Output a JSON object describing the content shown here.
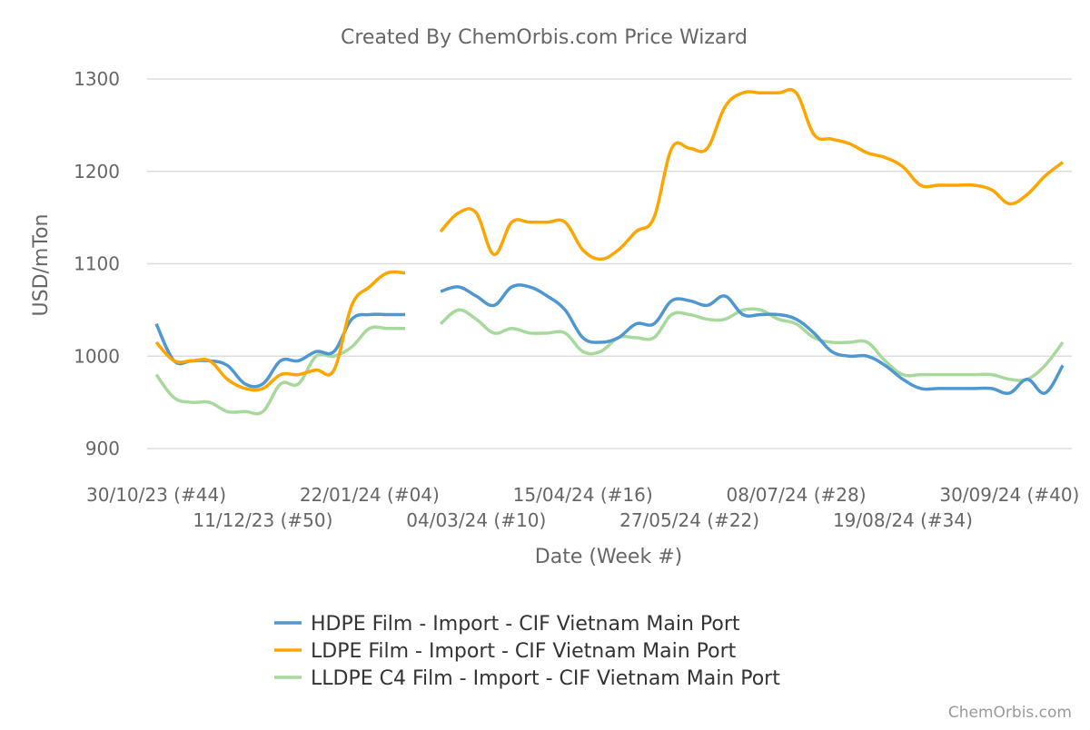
{
  "chart_data": {
    "type": "line",
    "title": "Created By ChemOrbis.com Price Wizard",
    "xlabel": "Date (Week #)",
    "ylabel": "USD/mTon",
    "ylim": [
      900,
      1300
    ],
    "yticks": [
      900,
      1000,
      1100,
      1200,
      1300
    ],
    "grid": true,
    "legend_position": "bottom",
    "watermark": "ChemOrbis.com",
    "x_tick_labels": [
      {
        "index": 0,
        "label": "30/10/23 (#44)"
      },
      {
        "index": 6,
        "label": "11/12/23 (#50)"
      },
      {
        "index": 12,
        "label": "22/01/24 (#04)"
      },
      {
        "index": 18,
        "label": "04/03/24 (#10)"
      },
      {
        "index": 24,
        "label": "15/04/24 (#16)"
      },
      {
        "index": 30,
        "label": "27/05/24 (#22)"
      },
      {
        "index": 36,
        "label": "08/07/24 (#28)"
      },
      {
        "index": 42,
        "label": "19/08/24 (#34)"
      },
      {
        "index": 48,
        "label": "30/09/24 (#40)"
      }
    ],
    "series": [
      {
        "name": "HDPE Film - Import - CIF Vietnam Main Port",
        "color": "#4e97d1",
        "values": [
          1035,
          995,
          995,
          995,
          990,
          970,
          970,
          995,
          995,
          1005,
          1005,
          1040,
          1045,
          1045,
          1045,
          null,
          1070,
          1075,
          1065,
          1055,
          1075,
          1075,
          1065,
          1050,
          1020,
          1015,
          1020,
          1035,
          1035,
          1060,
          1060,
          1055,
          1065,
          1045,
          1045,
          1045,
          1040,
          1025,
          1005,
          1000,
          1000,
          990,
          975,
          965,
          965,
          965,
          965,
          965,
          960,
          975,
          960,
          990
        ]
      },
      {
        "name": "LDPE Film - Import - CIF Vietnam Main Port",
        "color": "#ffa500",
        "values": [
          1015,
          995,
          995,
          995,
          975,
          965,
          965,
          980,
          980,
          985,
          985,
          1055,
          1075,
          1090,
          1090,
          null,
          1135,
          1155,
          1155,
          1110,
          1145,
          1145,
          1145,
          1145,
          1115,
          1105,
          1115,
          1135,
          1150,
          1225,
          1225,
          1225,
          1270,
          1285,
          1285,
          1285,
          1285,
          1240,
          1235,
          1230,
          1220,
          1215,
          1205,
          1185,
          1185,
          1185,
          1185,
          1180,
          1165,
          1175,
          1195,
          1210
        ]
      },
      {
        "name": "LLDPE C4 Film - Import - CIF Vietnam Main Port",
        "color": "#a8d99c",
        "values": [
          980,
          955,
          950,
          950,
          940,
          940,
          940,
          970,
          970,
          1000,
          1000,
          1010,
          1030,
          1030,
          1030,
          null,
          1035,
          1050,
          1040,
          1025,
          1030,
          1025,
          1025,
          1025,
          1005,
          1005,
          1020,
          1020,
          1020,
          1045,
          1045,
          1040,
          1040,
          1050,
          1050,
          1040,
          1035,
          1020,
          1015,
          1015,
          1015,
          995,
          980,
          980,
          980,
          980,
          980,
          980,
          975,
          975,
          990,
          1015
        ]
      }
    ]
  }
}
